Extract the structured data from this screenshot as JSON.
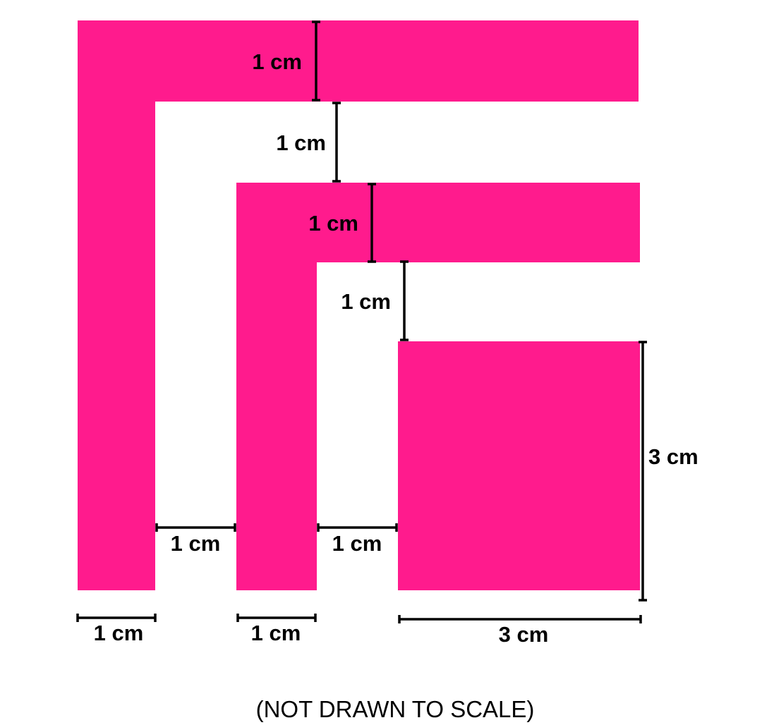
{
  "colors": {
    "shape_fill": "#FF1B8D",
    "line": "#000000",
    "background": "#FFFFFF"
  },
  "shapes": [
    {
      "name": "outer-l-shape"
    },
    {
      "name": "middle-l-shape"
    },
    {
      "name": "inner-square"
    }
  ],
  "dimensions": {
    "outer_bar_thickness": "1 cm",
    "gap_outer_to_middle_top": "1 cm",
    "middle_bar_thickness": "1 cm",
    "gap_middle_to_square_top": "1 cm",
    "square_height": "3 cm",
    "gap_outer_to_middle_side": "1 cm",
    "gap_middle_to_square_side": "1 cm",
    "outer_leg_width": "1 cm",
    "middle_leg_width": "1 cm",
    "square_width": "3 cm"
  },
  "note": "(NOT DRAWN TO SCALE)"
}
